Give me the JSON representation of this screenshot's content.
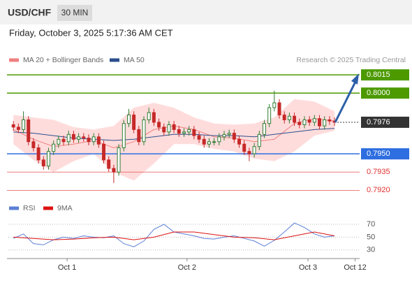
{
  "chart_data": [
    {
      "type": "candlestick",
      "title": "USD/CHF",
      "subtitle": "30 MIN",
      "date": "Friday, October 3, 2025 5:17:36 AM CET",
      "source": "Research © 2025 Trading Central",
      "up_color": "#2e7d32",
      "down_color": "#c62828",
      "candles": {
        "open": [
          0.7974,
          0.7972,
          0.797,
          0.7978,
          0.796,
          0.7955,
          0.7945,
          0.794,
          0.7952,
          0.7958,
          0.7962,
          0.796,
          0.7966,
          0.7962,
          0.7964,
          0.7963,
          0.796,
          0.7964,
          0.7958,
          0.7945,
          0.7938,
          0.7935,
          0.7955,
          0.7975,
          0.7982,
          0.797,
          0.796,
          0.7978,
          0.7984,
          0.7976,
          0.7972,
          0.7968,
          0.7974,
          0.797,
          0.7967,
          0.7968,
          0.797,
          0.7965,
          0.7962,
          0.7958,
          0.796,
          0.796,
          0.7964,
          0.7966,
          0.7967,
          0.7962,
          0.7958,
          0.7952,
          0.795,
          0.7956,
          0.7966,
          0.7975,
          0.7988,
          0.7992,
          0.7982,
          0.7978,
          0.7981,
          0.7976,
          0.7974,
          0.7978,
          0.7976,
          0.7979,
          0.7973,
          0.7978,
          0.7977
        ],
        "high": [
          0.7977,
          0.7975,
          0.7985,
          0.7981,
          0.7963,
          0.7958,
          0.7948,
          0.7955,
          0.7961,
          0.7965,
          0.7965,
          0.7969,
          0.7969,
          0.7967,
          0.7967,
          0.7966,
          0.7967,
          0.7967,
          0.7961,
          0.7948,
          0.7941,
          0.7958,
          0.7978,
          0.7987,
          0.7985,
          0.7973,
          0.7981,
          0.7988,
          0.7987,
          0.7979,
          0.7975,
          0.7977,
          0.7977,
          0.7973,
          0.7971,
          0.7973,
          0.7973,
          0.7968,
          0.7965,
          0.7963,
          0.7963,
          0.7967,
          0.7969,
          0.797,
          0.797,
          0.7965,
          0.7961,
          0.7955,
          0.7959,
          0.7969,
          0.7978,
          0.7991,
          0.8002,
          0.7995,
          0.7985,
          0.7984,
          0.7984,
          0.7979,
          0.7981,
          0.7981,
          0.7982,
          0.7982,
          0.7981,
          0.7981,
          0.798
        ],
        "low": [
          0.7969,
          0.7967,
          0.7967,
          0.7957,
          0.7952,
          0.7942,
          0.7937,
          0.7937,
          0.7949,
          0.7955,
          0.7957,
          0.7957,
          0.7959,
          0.7959,
          0.796,
          0.7957,
          0.7957,
          0.7955,
          0.7942,
          0.7935,
          0.7926,
          0.7932,
          0.7952,
          0.7972,
          0.7967,
          0.7957,
          0.7957,
          0.7975,
          0.7973,
          0.7969,
          0.7965,
          0.7965,
          0.7967,
          0.7964,
          0.7964,
          0.7965,
          0.7962,
          0.7959,
          0.7955,
          0.7955,
          0.7957,
          0.7957,
          0.7961,
          0.7963,
          0.7959,
          0.7955,
          0.7949,
          0.7944,
          0.7947,
          0.7953,
          0.7963,
          0.7972,
          0.7985,
          0.7979,
          0.7975,
          0.7975,
          0.7973,
          0.7971,
          0.7971,
          0.7973,
          0.7973,
          0.797,
          0.797,
          0.7974,
          0.7973
        ],
        "close": [
          0.7972,
          0.797,
          0.7978,
          0.796,
          0.7955,
          0.7945,
          0.794,
          0.7952,
          0.7958,
          0.7962,
          0.796,
          0.7966,
          0.7962,
          0.7964,
          0.7963,
          0.796,
          0.7964,
          0.7958,
          0.7945,
          0.7938,
          0.7935,
          0.7955,
          0.7975,
          0.7982,
          0.797,
          0.796,
          0.7978,
          0.7984,
          0.7976,
          0.7972,
          0.7968,
          0.7974,
          0.797,
          0.7967,
          0.7968,
          0.797,
          0.7965,
          0.7962,
          0.7958,
          0.796,
          0.796,
          0.7964,
          0.7966,
          0.7967,
          0.7962,
          0.7958,
          0.7952,
          0.795,
          0.7956,
          0.7966,
          0.7975,
          0.7988,
          0.7992,
          0.7982,
          0.7978,
          0.7981,
          0.7976,
          0.7974,
          0.7978,
          0.7976,
          0.7979,
          0.7973,
          0.7978,
          0.7977,
          0.7976
        ]
      },
      "series": [
        {
          "name": "MA 20 + Bollinger Bands",
          "color": "#f08080",
          "band_color": "#ffdcdc",
          "x": [
            1,
            5,
            9,
            13,
            17,
            21,
            25,
            29,
            33,
            37,
            41,
            45,
            49,
            53,
            57,
            61,
            65
          ],
          "values": [
            0.797,
            0.7962,
            0.7956,
            0.7958,
            0.7961,
            0.7955,
            0.796,
            0.797,
            0.7973,
            0.797,
            0.7964,
            0.7963,
            0.796,
            0.7962,
            0.7975,
            0.7979,
            0.7977
          ],
          "upper": [
            0.7982,
            0.798,
            0.7978,
            0.7972,
            0.797,
            0.7973,
            0.7988,
            0.7992,
            0.7988,
            0.798,
            0.7975,
            0.7974,
            0.7975,
            0.798,
            0.7995,
            0.7993,
            0.7985
          ],
          "lower": [
            0.7958,
            0.7945,
            0.7935,
            0.7944,
            0.795,
            0.7935,
            0.7928,
            0.7942,
            0.7958,
            0.7958,
            0.7954,
            0.7952,
            0.7946,
            0.7944,
            0.7952,
            0.7965,
            0.7969
          ]
        },
        {
          "name": "MA 50",
          "color": "#2b4f8c",
          "x": [
            1,
            5,
            9,
            13,
            17,
            21,
            25,
            29,
            33,
            37,
            41,
            45,
            49,
            53,
            57,
            61,
            65
          ],
          "values": [
            0.7968,
            0.7967,
            0.7965,
            0.7963,
            0.7962,
            0.7961,
            0.7962,
            0.7964,
            0.7966,
            0.7966,
            0.7965,
            0.7965,
            0.7964,
            0.7966,
            0.7968,
            0.797,
            0.7971
          ]
        }
      ],
      "levels": [
        {
          "value": 0.8015,
          "label": "0.8015",
          "color": "#4c9a00",
          "boxed": true
        },
        {
          "value": 0.8,
          "label": "0.8000",
          "color": "#4c9a00",
          "boxed": true
        },
        {
          "value": 0.7976,
          "label": "0.7976",
          "color": "#333333",
          "boxed": true,
          "dashed": true
        },
        {
          "value": 0.795,
          "label": "0.7950",
          "color": "#2d6ee0",
          "boxed": true
        },
        {
          "value": 0.7935,
          "label": "0.7935",
          "color": "#e03030",
          "boxed": false
        },
        {
          "value": 0.792,
          "label": "0.7920",
          "color": "#e03030",
          "boxed": false
        }
      ],
      "xlim": [
        0,
        70
      ],
      "ylim": [
        0.7915,
        0.8022
      ]
    },
    {
      "type": "line",
      "series": [
        {
          "name": "RSI",
          "color": "#5b7fd6",
          "x": [
            1,
            3,
            5,
            7,
            9,
            11,
            13,
            15,
            17,
            19,
            21,
            23,
            25,
            27,
            29,
            31,
            33,
            35,
            37,
            39,
            41,
            43,
            45,
            47,
            49,
            51,
            53,
            55,
            57,
            59,
            61,
            63,
            65
          ],
          "values": [
            48,
            55,
            40,
            38,
            46,
            50,
            48,
            52,
            50,
            49,
            52,
            40,
            35,
            44,
            62,
            70,
            58,
            55,
            52,
            48,
            47,
            50,
            52,
            48,
            44,
            36,
            45,
            58,
            72,
            65,
            55,
            50,
            52
          ]
        },
        {
          "name": "9MA",
          "color": "#dd1111",
          "x": [
            1,
            5,
            9,
            13,
            17,
            21,
            25,
            29,
            33,
            37,
            41,
            45,
            49,
            53,
            57,
            61,
            65
          ],
          "values": [
            50,
            48,
            46,
            47,
            49,
            50,
            46,
            50,
            58,
            58,
            54,
            50,
            49,
            46,
            52,
            58,
            52
          ]
        }
      ],
      "xlim": [
        0,
        70
      ],
      "ylim": [
        20,
        80
      ],
      "yticks": [
        30,
        50,
        70
      ],
      "xticks": [
        {
          "value": 11.7,
          "label": "Oct 1"
        },
        {
          "value": 35.6,
          "label": "Oct 2"
        },
        {
          "value": 59.7,
          "label": "Oct 3"
        },
        {
          "value": 69.1,
          "label": "Oct 12"
        }
      ]
    }
  ]
}
